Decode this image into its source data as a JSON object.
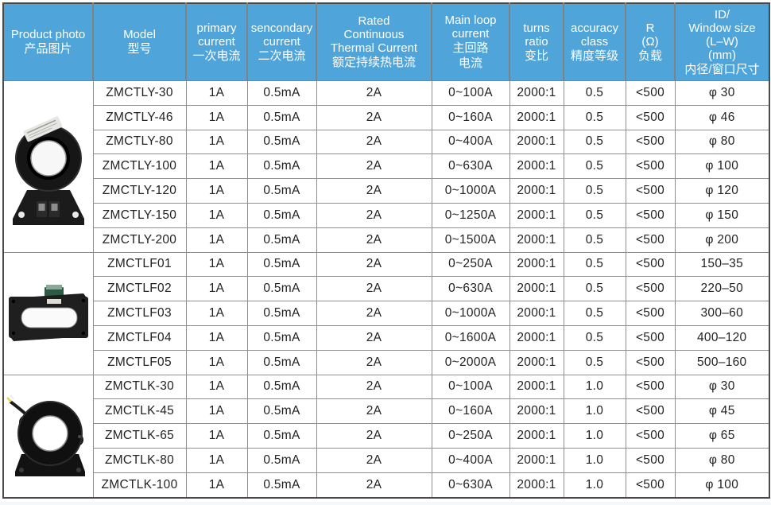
{
  "colors": {
    "header_bg": "#4FA5D9",
    "header_text": "#FFFFFF",
    "grid_line": "#8F8F8F",
    "outer_border": "#4A4A4A",
    "cell_text": "#222222"
  },
  "header": {
    "columns": [
      {
        "id": "product_photo",
        "en": "Product photo",
        "zh": "产品图片"
      },
      {
        "id": "model",
        "en": "Model",
        "zh": "型号"
      },
      {
        "id": "primary",
        "en": "primary\ncurrent",
        "zh": "一次电流"
      },
      {
        "id": "secondary",
        "en": "sencondary\ncurrent",
        "zh": "二次电流"
      },
      {
        "id": "thermal",
        "en": "Rated\nContinuous\nThermal Current",
        "zh": "额定持续热电流"
      },
      {
        "id": "main_loop",
        "en": "Main loop\ncurrent",
        "zh": "主回路\n电流"
      },
      {
        "id": "turns",
        "en": "turns\nratio",
        "zh": "变比"
      },
      {
        "id": "accuracy",
        "en": "accuracy\nclass",
        "zh": "精度等级"
      },
      {
        "id": "r_load",
        "en": "R\n(Ω)",
        "zh": "负载"
      },
      {
        "id": "window",
        "en": "ID/\nWindow size\n(L–W)\n(mm)",
        "zh": "内径/窗口尺寸"
      }
    ]
  },
  "groups": [
    {
      "photo": "toroid-ct-bracket-photo",
      "rows": [
        {
          "model": "ZMCTLY-30",
          "primary": "1A",
          "secondary": "0.5mA",
          "thermal": "2A",
          "main_loop": "0~100A",
          "turns": "2000:1",
          "accuracy": "0.5",
          "r": "<500",
          "window": "φ 30"
        },
        {
          "model": "ZMCTLY-46",
          "primary": "1A",
          "secondary": "0.5mA",
          "thermal": "2A",
          "main_loop": "0~160A",
          "turns": "2000:1",
          "accuracy": "0.5",
          "r": "<500",
          "window": "φ 46"
        },
        {
          "model": "ZMCTLY-80",
          "primary": "1A",
          "secondary": "0.5mA",
          "thermal": "2A",
          "main_loop": "0~400A",
          "turns": "2000:1",
          "accuracy": "0.5",
          "r": "<500",
          "window": "φ 80"
        },
        {
          "model": "ZMCTLY-100",
          "primary": "1A",
          "secondary": "0.5mA",
          "thermal": "2A",
          "main_loop": "0~630A",
          "turns": "2000:1",
          "accuracy": "0.5",
          "r": "<500",
          "window": "φ 100"
        },
        {
          "model": "ZMCTLY-120",
          "primary": "1A",
          "secondary": "0.5mA",
          "thermal": "2A",
          "main_loop": "0~1000A",
          "turns": "2000:1",
          "accuracy": "0.5",
          "r": "<500",
          "window": "φ 120"
        },
        {
          "model": "ZMCTLY-150",
          "primary": "1A",
          "secondary": "0.5mA",
          "thermal": "2A",
          "main_loop": "0~1250A",
          "turns": "2000:1",
          "accuracy": "0.5",
          "r": "<500",
          "window": "φ 150"
        },
        {
          "model": "ZMCTLY-200",
          "primary": "1A",
          "secondary": "0.5mA",
          "thermal": "2A",
          "main_loop": "0~1500A",
          "turns": "2000:1",
          "accuracy": "0.5",
          "r": "<500",
          "window": "φ 200"
        }
      ]
    },
    {
      "photo": "rectangular-frame-ct-photo",
      "rows": [
        {
          "model": "ZMCTLF01",
          "primary": "1A",
          "secondary": "0.5mA",
          "thermal": "2A",
          "main_loop": "0~250A",
          "turns": "2000:1",
          "accuracy": "0.5",
          "r": "<500",
          "window": "150–35"
        },
        {
          "model": "ZMCTLF02",
          "primary": "1A",
          "secondary": "0.5mA",
          "thermal": "2A",
          "main_loop": "0~630A",
          "turns": "2000:1",
          "accuracy": "0.5",
          "r": "<500",
          "window": "220–50"
        },
        {
          "model": "ZMCTLF03",
          "primary": "1A",
          "secondary": "0.5mA",
          "thermal": "2A",
          "main_loop": "0~1000A",
          "turns": "2000:1",
          "accuracy": "0.5",
          "r": "<500",
          "window": "300–60"
        },
        {
          "model": "ZMCTLF04",
          "primary": "1A",
          "secondary": "0.5mA",
          "thermal": "2A",
          "main_loop": "0~1600A",
          "turns": "2000:1",
          "accuracy": "0.5",
          "r": "<500",
          "window": "400–120"
        },
        {
          "model": "ZMCTLF05",
          "primary": "1A",
          "secondary": "0.5mA",
          "thermal": "2A",
          "main_loop": "0~2000A",
          "turns": "2000:1",
          "accuracy": "0.5",
          "r": "<500",
          "window": "500–160"
        }
      ]
    },
    {
      "photo": "toroid-ct-wired-photo",
      "rows": [
        {
          "model": "ZMCTLK-30",
          "primary": "1A",
          "secondary": "0.5mA",
          "thermal": "2A",
          "main_loop": "0~100A",
          "turns": "2000:1",
          "accuracy": "1.0",
          "r": "<500",
          "window": "φ 30"
        },
        {
          "model": "ZMCTLK-45",
          "primary": "1A",
          "secondary": "0.5mA",
          "thermal": "2A",
          "main_loop": "0~160A",
          "turns": "2000:1",
          "accuracy": "1.0",
          "r": "<500",
          "window": "φ 45"
        },
        {
          "model": "ZMCTLK-65",
          "primary": "1A",
          "secondary": "0.5mA",
          "thermal": "2A",
          "main_loop": "0~250A",
          "turns": "2000:1",
          "accuracy": "1.0",
          "r": "<500",
          "window": "φ 65"
        },
        {
          "model": "ZMCTLK-80",
          "primary": "1A",
          "secondary": "0.5mA",
          "thermal": "2A",
          "main_loop": "0~400A",
          "turns": "2000:1",
          "accuracy": "1.0",
          "r": "<500",
          "window": "φ 80"
        },
        {
          "model": "ZMCTLK-100",
          "primary": "1A",
          "secondary": "0.5mA",
          "thermal": "2A",
          "main_loop": "0~630A",
          "turns": "2000:1",
          "accuracy": "1.0",
          "r": "<500",
          "window": "φ 100"
        }
      ]
    }
  ]
}
